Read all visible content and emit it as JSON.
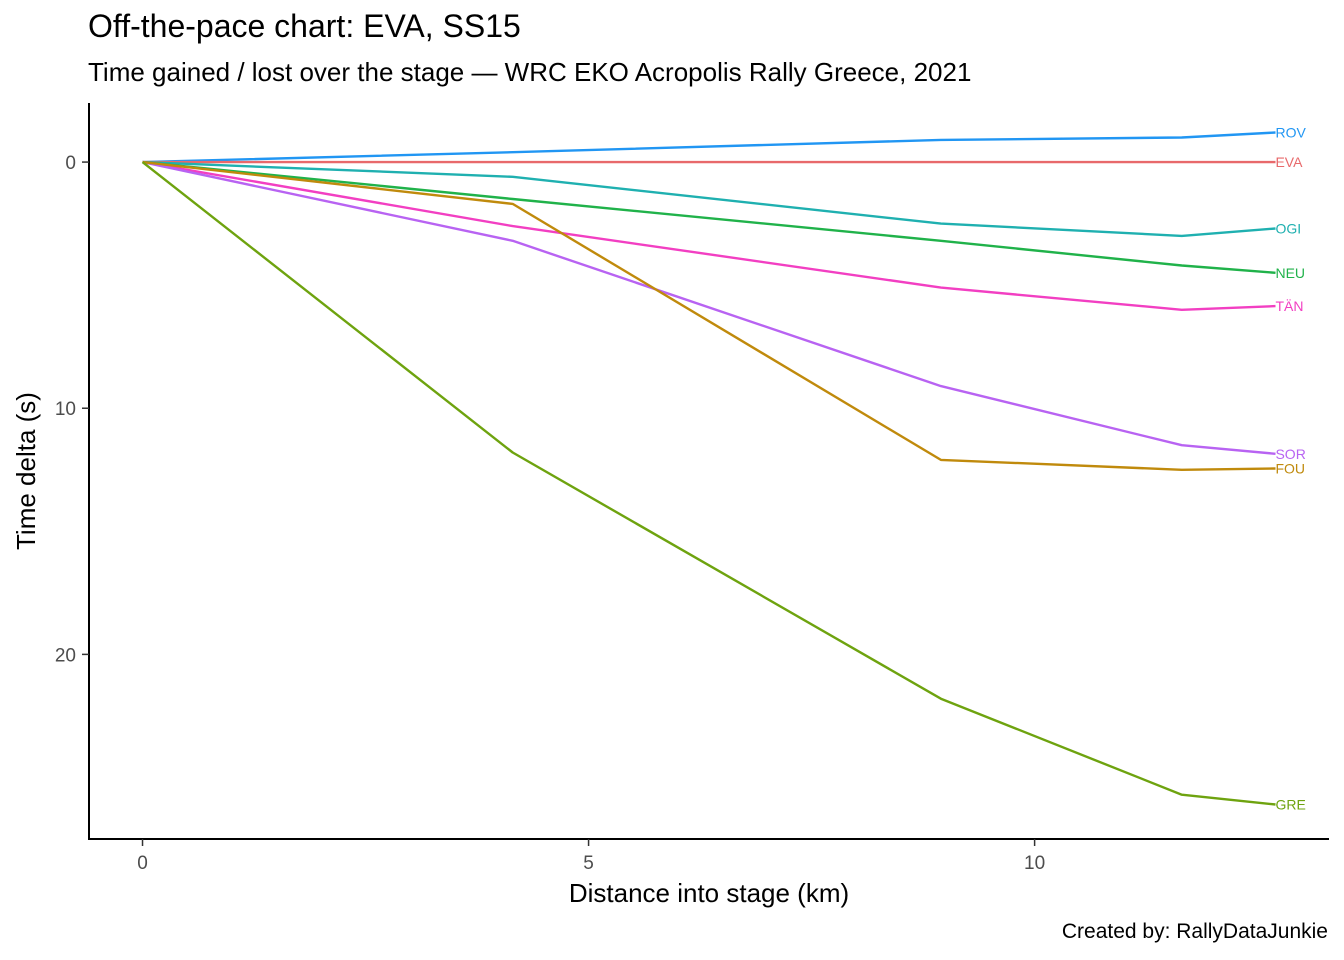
{
  "chart_data": {
    "type": "line",
    "title": "Off-the-pace chart: EVA, SS15",
    "subtitle": "Time gained / lost over the stage — WRC EKO Acropolis Rally Greece, 2021",
    "caption": "Created by: RallyDataJunkie",
    "xlabel": "Distance into stage (km)",
    "ylabel": "Time delta (s)",
    "xlim": [
      -0.6,
      13.3
    ],
    "ylim": [
      -2.4,
      27.5
    ],
    "y_reversed": true,
    "x_ticks": [
      0,
      5,
      10
    ],
    "y_ticks": [
      0,
      10,
      20
    ],
    "grid": false,
    "legend": "direct labels at line ends",
    "series": [
      {
        "name": "ROV",
        "color": "#2196F3",
        "x": [
          0,
          4.15,
          8.95,
          11.65,
          12.7
        ],
        "y": [
          0,
          -0.4,
          -0.9,
          -1.0,
          -1.2
        ]
      },
      {
        "name": "EVA",
        "color": "#E8696B",
        "x": [
          0,
          4.15,
          8.95,
          11.65,
          12.7
        ],
        "y": [
          0,
          0,
          0,
          0,
          0
        ]
      },
      {
        "name": "OGI",
        "color": "#1FB0B0",
        "x": [
          0,
          4.15,
          8.95,
          11.65,
          12.7
        ],
        "y": [
          0,
          0.6,
          2.5,
          3.0,
          2.7
        ]
      },
      {
        "name": "NEU",
        "color": "#20B24A",
        "x": [
          0,
          4.15,
          8.95,
          11.65,
          12.7
        ],
        "y": [
          0,
          1.5,
          3.2,
          4.2,
          4.5
        ]
      },
      {
        "name": "TÄN",
        "color": "#F23FC2",
        "x": [
          0,
          4.15,
          8.95,
          11.65,
          12.7
        ],
        "y": [
          0,
          2.6,
          5.1,
          6.0,
          5.85
        ]
      },
      {
        "name": "SOR",
        "color": "#B863F2",
        "x": [
          0,
          4.15,
          8.95,
          11.65,
          12.7
        ],
        "y": [
          0,
          3.2,
          9.1,
          11.5,
          11.85
        ]
      },
      {
        "name": "FOU",
        "color": "#C08A0C",
        "x": [
          0,
          4.15,
          8.95,
          11.65,
          12.7
        ],
        "y": [
          0,
          1.7,
          12.1,
          12.5,
          12.45
        ]
      },
      {
        "name": "GRE",
        "color": "#6EA30F",
        "x": [
          0,
          4.15,
          8.95,
          11.65,
          12.7
        ],
        "y": [
          0,
          11.8,
          21.8,
          25.7,
          26.1
        ]
      }
    ]
  }
}
